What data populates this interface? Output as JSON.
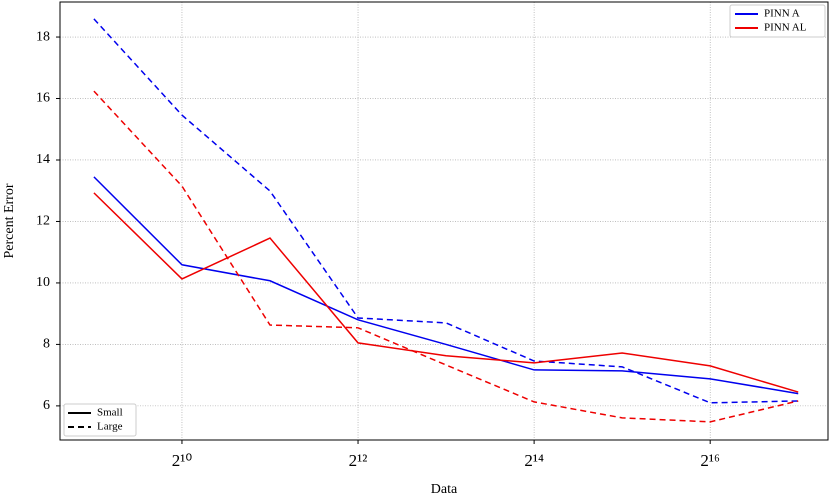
{
  "chart_data": {
    "type": "line",
    "x_label": "Data",
    "y_label": "Percent Error",
    "xscale": "log2",
    "x": [
      512,
      1024,
      2048,
      4096,
      8192,
      16384,
      32768,
      65536,
      131072
    ],
    "xlim": [
      392,
      165700
    ],
    "xticks": [
      {
        "value": 1024,
        "label": "2¹⁰"
      },
      {
        "value": 4096,
        "label": "2¹²"
      },
      {
        "value": 16384,
        "label": "2¹⁴"
      },
      {
        "value": 65536,
        "label": "2¹⁶"
      }
    ],
    "ylim": [
      4.89,
      19.14
    ],
    "yticks": [
      6,
      8,
      10,
      12,
      14,
      16,
      18
    ],
    "grid": true,
    "styles": [
      {
        "name": "Small",
        "dash": "solid"
      },
      {
        "name": "Large",
        "dash": "dashed"
      }
    ],
    "style_legend_position": "lower left",
    "color_legend_position": "upper right",
    "series": [
      {
        "name": "PINN A",
        "color": "#0000ee",
        "lines": [
          {
            "style": "Small",
            "values": [
              13.45,
              10.59,
              10.07,
              8.8,
              8.0,
              7.17,
              7.14,
              6.88,
              6.4
            ]
          },
          {
            "style": "Large",
            "values": [
              18.59,
              15.46,
              12.99,
              8.86,
              8.7,
              7.46,
              7.27,
              6.1,
              6.16
            ]
          }
        ]
      },
      {
        "name": "PINN AL",
        "color": "#ee0000",
        "lines": [
          {
            "style": "Small",
            "values": [
              12.93,
              10.13,
              11.46,
              8.05,
              7.63,
              7.4,
              7.72,
              7.3,
              6.45
            ]
          },
          {
            "style": "Large",
            "values": [
              16.24,
              13.15,
              8.63,
              8.54,
              7.33,
              6.13,
              5.61,
              5.48,
              6.16
            ]
          }
        ]
      }
    ]
  }
}
